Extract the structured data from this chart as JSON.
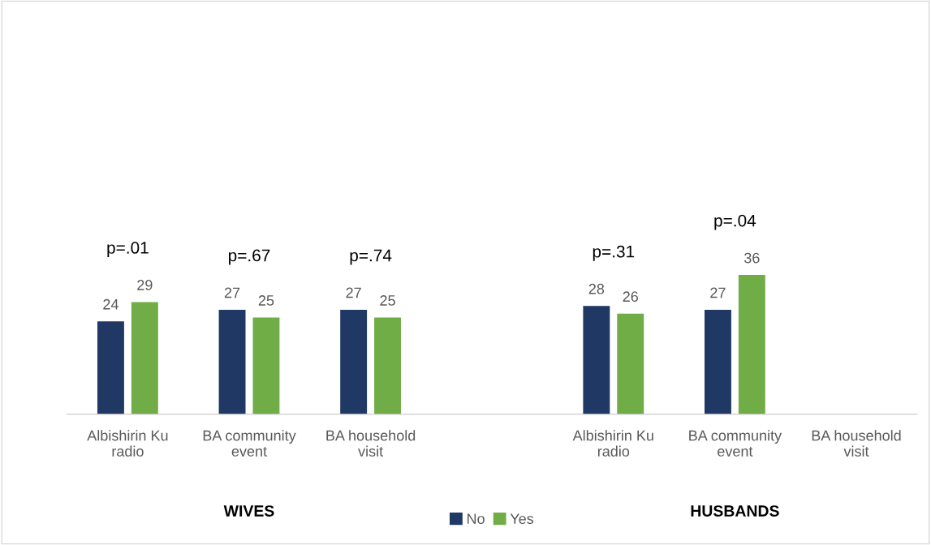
{
  "chart_data": {
    "type": "bar",
    "categories": [
      "Albishirin Ku\nradio",
      "BA community\nevent",
      "BA household\nvisit",
      null,
      "Albishirin Ku\nradio",
      "BA community\nevent",
      "BA household\nvisit"
    ],
    "series": [
      {
        "name": "No",
        "color": "#203864",
        "values": [
          24,
          27,
          27,
          null,
          28,
          27,
          null
        ]
      },
      {
        "name": "Yes",
        "color": "#70ad47",
        "values": [
          29,
          25,
          25,
          null,
          26,
          36,
          null
        ]
      }
    ],
    "data_labels": true,
    "legend": "bottom",
    "grid": false,
    "annotations": [
      "p=.01",
      "p=.67",
      "p=.74",
      "p=.31",
      "p=.04",
      "WIVES",
      "HUSBANDS"
    ]
  }
}
